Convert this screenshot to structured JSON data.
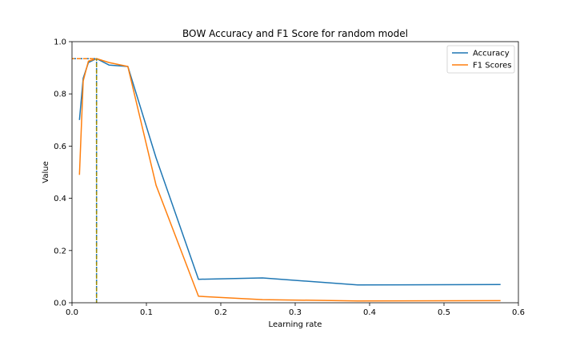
{
  "chart_data": {
    "type": "line",
    "title": "BOW Accuracy and F1 Score for random model",
    "xlabel": "Learning rate",
    "ylabel": "Value",
    "xlim": [
      0,
      0.6
    ],
    "ylim": [
      0,
      1.0
    ],
    "xticks": [
      "0.0",
      "0.1",
      "0.2",
      "0.3",
      "0.4",
      "0.5",
      "0.6"
    ],
    "yticks": [
      "0.0",
      "0.2",
      "0.4",
      "0.6",
      "0.8",
      "1.0"
    ],
    "grid": false,
    "legend_position": "top-right",
    "series": [
      {
        "name": "Accuracy",
        "color": "#1f77b4",
        "x": [
          0.01,
          0.015,
          0.022,
          0.033,
          0.05,
          0.075,
          0.113,
          0.17,
          0.256,
          0.384,
          0.576
        ],
        "y": [
          0.7,
          0.86,
          0.92,
          0.935,
          0.91,
          0.905,
          0.555,
          0.09,
          0.095,
          0.068,
          0.07
        ]
      },
      {
        "name": "F1 Scores",
        "color": "#ff7f0e",
        "x": [
          0.01,
          0.015,
          0.022,
          0.033,
          0.05,
          0.075,
          0.113,
          0.17,
          0.256,
          0.384,
          0.576
        ],
        "y": [
          0.49,
          0.85,
          0.925,
          0.935,
          0.92,
          0.905,
          0.45,
          0.025,
          0.012,
          0.007,
          0.008
        ]
      }
    ],
    "markers": {
      "best_x": 0.033,
      "best_y": 0.935,
      "color_accuracy": "#1f77b4",
      "color_f1": "#ff7f0e"
    }
  }
}
